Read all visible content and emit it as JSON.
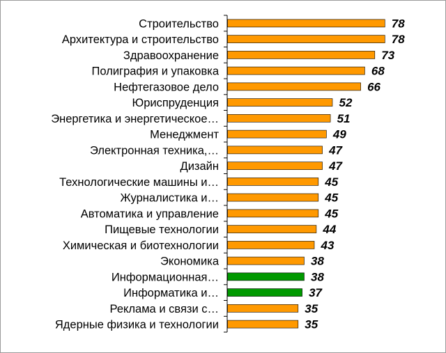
{
  "chart_data": {
    "type": "bar",
    "orientation": "horizontal",
    "title": "",
    "xlabel": "",
    "ylabel": "",
    "categories": [
      "Строительство",
      "Архитектура и строительство",
      "Здравоохранение",
      "Полиграфия и упаковка",
      "Нефтегазовое дело",
      "Юриспруденция",
      "Энергетика и энергетическое…",
      "Менеджмент",
      "Электронная техника,…",
      "Дизайн",
      "Технологические машины и…",
      "Журналистика и…",
      "Автоматика и управление",
      "Пищевые технологии",
      "Химическая и биотехнологии",
      "Экономика",
      "Информационная…",
      "Информатика и…",
      "Реклама и связи с…",
      "Ядерные физика и технологии"
    ],
    "values": [
      78,
      78,
      73,
      68,
      66,
      52,
      51,
      49,
      47,
      47,
      45,
      45,
      45,
      44,
      43,
      38,
      38,
      37,
      35,
      35
    ],
    "value_labels": [
      "78",
      "78",
      "73",
      "68",
      "66",
      "52",
      "51",
      "49",
      "47",
      "47",
      "45",
      "45",
      "45",
      "44",
      "43",
      "38",
      "38",
      "37",
      "35",
      "35"
    ],
    "highlighted_indices": [
      16,
      17
    ],
    "xlim": [
      0,
      100
    ],
    "grid": false,
    "legend": "none",
    "colors": {
      "bar": "#FF9900",
      "bar_highlight": "#009900",
      "bar_edge": "#000000",
      "axis": "#000000",
      "frame": "#9a9a9a"
    }
  }
}
